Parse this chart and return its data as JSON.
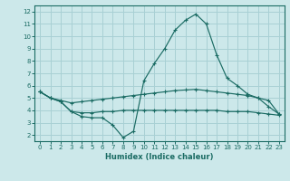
{
  "xlabel": "Humidex (Indice chaleur)",
  "bg_color": "#cce8ea",
  "line_color": "#1a6b63",
  "grid_color": "#a8d0d4",
  "spine_color": "#1a6b63",
  "xlim": [
    -0.5,
    23.5
  ],
  "ylim": [
    1.5,
    12.5
  ],
  "yticks": [
    2,
    3,
    4,
    5,
    6,
    7,
    8,
    9,
    10,
    11,
    12
  ],
  "xticks": [
    0,
    1,
    2,
    3,
    4,
    5,
    6,
    7,
    8,
    9,
    10,
    11,
    12,
    13,
    14,
    15,
    16,
    17,
    18,
    19,
    20,
    21,
    22,
    23
  ],
  "line1_x": [
    0,
    1,
    2,
    3,
    4,
    5,
    6,
    7,
    8,
    9,
    10,
    11,
    12,
    13,
    14,
    15,
    16,
    17,
    18,
    19,
    20,
    21,
    22,
    23
  ],
  "line1_y": [
    5.5,
    5.0,
    4.7,
    3.9,
    3.5,
    3.4,
    3.4,
    2.8,
    1.8,
    2.3,
    6.4,
    7.8,
    9.0,
    10.5,
    11.3,
    11.8,
    11.0,
    8.5,
    6.6,
    6.0,
    5.3,
    5.0,
    4.3,
    3.7
  ],
  "line2_x": [
    0,
    1,
    2,
    3,
    4,
    5,
    6,
    7,
    8,
    9,
    10,
    11,
    12,
    13,
    14,
    15,
    16,
    17,
    18,
    19,
    20,
    21,
    22,
    23
  ],
  "line2_y": [
    5.5,
    5.0,
    4.8,
    4.6,
    4.7,
    4.8,
    4.9,
    5.0,
    5.1,
    5.2,
    5.3,
    5.4,
    5.5,
    5.6,
    5.65,
    5.7,
    5.6,
    5.5,
    5.4,
    5.3,
    5.2,
    5.0,
    4.8,
    3.7
  ],
  "line3_x": [
    0,
    1,
    2,
    3,
    4,
    5,
    6,
    7,
    8,
    9,
    10,
    11,
    12,
    13,
    14,
    15,
    16,
    17,
    18,
    19,
    20,
    21,
    22,
    23
  ],
  "line3_y": [
    5.5,
    5.0,
    4.7,
    3.9,
    3.8,
    3.8,
    3.9,
    3.9,
    4.0,
    4.0,
    4.0,
    4.0,
    4.0,
    4.0,
    4.0,
    4.0,
    4.0,
    4.0,
    3.9,
    3.9,
    3.9,
    3.8,
    3.7,
    3.6
  ],
  "xlabel_fontsize": 6,
  "tick_fontsize": 5
}
